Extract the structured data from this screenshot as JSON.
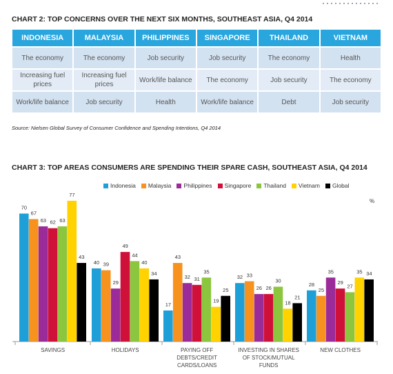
{
  "table_section": {
    "title": "CHART 2: TOP CONCERNS OVER THE NEXT SIX MONTHS, SOUTHEAST ASIA, Q4 2014",
    "header": [
      "INDONESIA",
      "MALAYSIA",
      "PHILIPPINES",
      "SINGAPORE",
      "THAILAND",
      "VIETNAM"
    ],
    "rows": [
      [
        "The economy",
        "The economy",
        "Job security",
        "Job security",
        "The economy",
        "Health"
      ],
      [
        "Increasing fuel prices",
        "Increasing fuel prices",
        "Work/life balance",
        "The economy",
        "Job security",
        "The economy"
      ],
      [
        "Work/life balance",
        "Job security",
        "Health",
        "Work/life balance",
        "Debt",
        "Job security"
      ]
    ],
    "source": "Source: Nielsen Global Survey of Consumer Confidence and Spending Intentions, Q4 2014"
  },
  "chart_data": {
    "type": "bar",
    "title": "CHART 3: TOP AREAS CONSUMERS ARE SPENDING THEIR SPARE CASH, SOUTHEAST ASIA, Q4 2014",
    "unit_label": "%",
    "categories": [
      "SAVINGS",
      "HOLIDAYS",
      "PAYING OFF DEBTS/CREDIT CARDS/LOANS",
      "INVESTING IN SHARES OF STOCK/MUTUAL FUNDS",
      "NEW CLOTHES"
    ],
    "series": [
      {
        "name": "Indonesia",
        "color": "#1e9fd8",
        "values": [
          70,
          40,
          17,
          32,
          28
        ]
      },
      {
        "name": "Malaysia",
        "color": "#f7921e",
        "values": [
          67,
          39,
          43,
          33,
          25
        ]
      },
      {
        "name": "Philippines",
        "color": "#9b2b99",
        "values": [
          63,
          29,
          32,
          26,
          35
        ]
      },
      {
        "name": "Singapore",
        "color": "#cf1039",
        "values": [
          62,
          49,
          31,
          26,
          29
        ]
      },
      {
        "name": "Thailand",
        "color": "#8cc63f",
        "values": [
          63,
          44,
          35,
          30,
          27
        ]
      },
      {
        "name": "Vietnam",
        "color": "#ffd200",
        "values": [
          77,
          40,
          19,
          18,
          35
        ]
      },
      {
        "name": "Global",
        "color": "#000000",
        "values": [
          43,
          34,
          25,
          21,
          34
        ]
      }
    ]
  }
}
